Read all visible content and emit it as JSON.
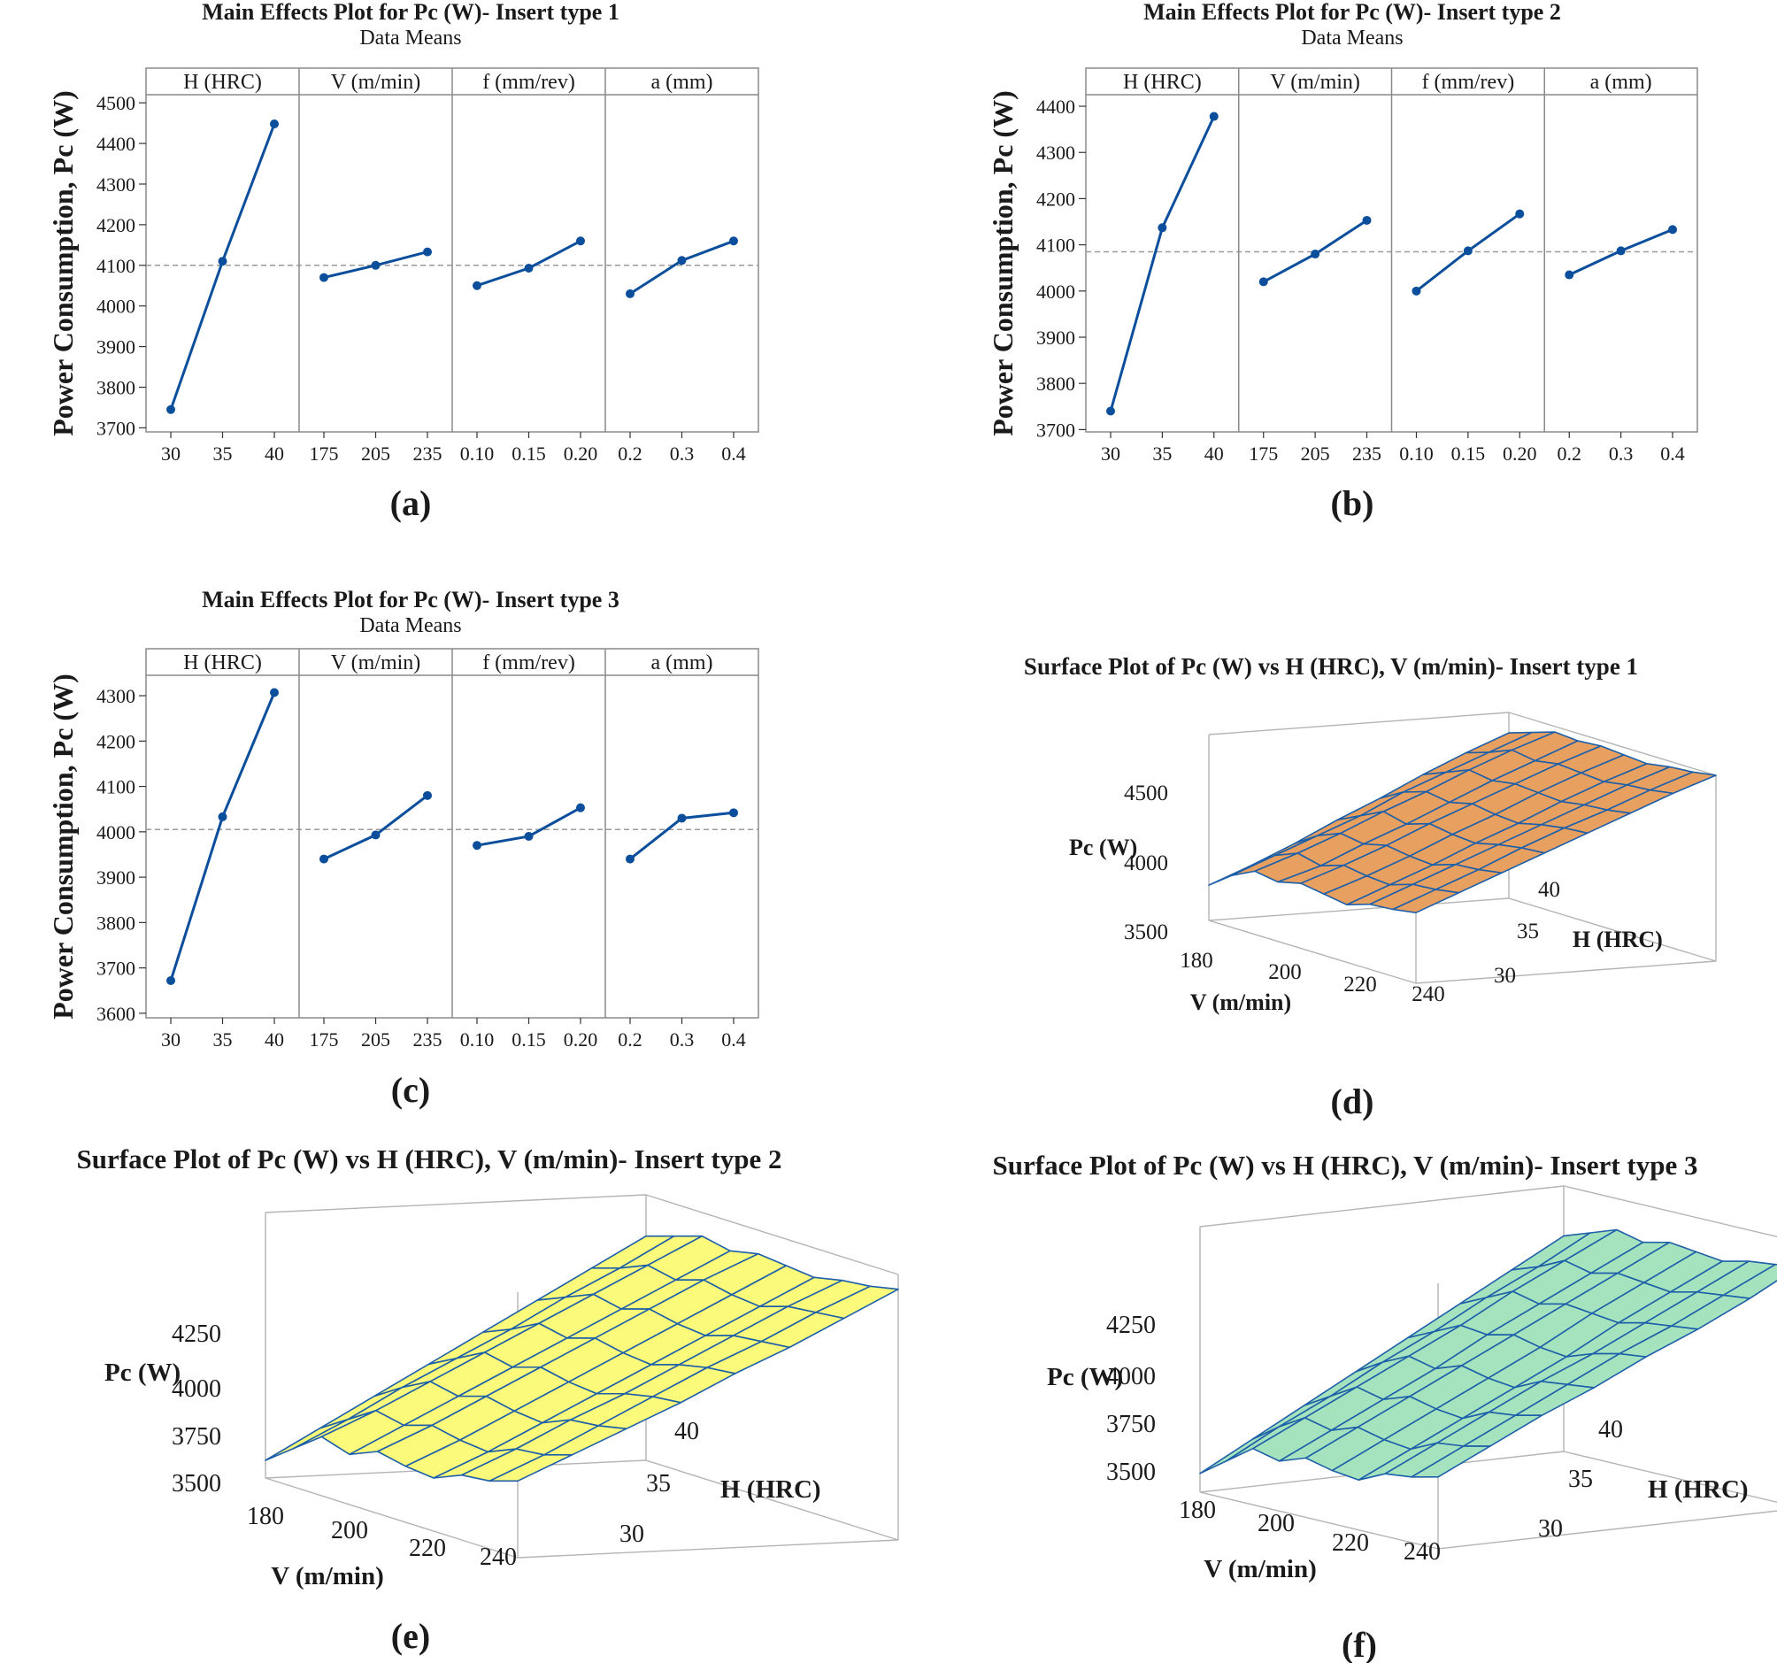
{
  "chart_data": [
    {
      "id": "a",
      "type": "line",
      "title": "Main Effects Plot for Pc (W)- Insert type 1",
      "subtitle": "Data Means",
      "ylabel": "Power Consumption, Pc (W)",
      "panel_label": "(a)",
      "ylim": [
        3690,
        4520
      ],
      "yticks": [
        3700,
        3800,
        3900,
        4000,
        4100,
        4200,
        4300,
        4400,
        4500
      ],
      "mean": 4100,
      "panels": [
        {
          "name": "H (HRC)",
          "categories": [
            "30",
            "35",
            "40"
          ],
          "values": [
            3745,
            4110,
            4448
          ]
        },
        {
          "name": "V (m/min)",
          "categories": [
            "175",
            "205",
            "235"
          ],
          "values": [
            4070,
            4100,
            4133
          ]
        },
        {
          "name": "f (mm/rev)",
          "categories": [
            "0.10",
            "0.15",
            "0.20"
          ],
          "values": [
            4050,
            4093,
            4160
          ]
        },
        {
          "name": "a (mm)",
          "categories": [
            "0.2",
            "0.3",
            "0.4"
          ],
          "values": [
            4030,
            4112,
            4160
          ]
        }
      ]
    },
    {
      "id": "b",
      "type": "line",
      "title": "Main Effects Plot for Pc (W)- Insert type 2",
      "subtitle": "Data Means",
      "ylabel": "Power Consumption, Pc (W)",
      "panel_label": "(b)",
      "ylim": [
        3695,
        4425
      ],
      "yticks": [
        3700,
        3800,
        3900,
        4000,
        4100,
        4200,
        4300,
        4400
      ],
      "mean": 4085,
      "panels": [
        {
          "name": "H (HRC)",
          "categories": [
            "30",
            "35",
            "40"
          ],
          "values": [
            3740,
            4137,
            4378
          ]
        },
        {
          "name": "V (m/min)",
          "categories": [
            "175",
            "205",
            "235"
          ],
          "values": [
            4020,
            4080,
            4153
          ]
        },
        {
          "name": "f (mm/rev)",
          "categories": [
            "0.10",
            "0.15",
            "0.20"
          ],
          "values": [
            4000,
            4087,
            4167
          ]
        },
        {
          "name": "a (mm)",
          "categories": [
            "0.2",
            "0.3",
            "0.4"
          ],
          "values": [
            4035,
            4087,
            4133
          ]
        }
      ]
    },
    {
      "id": "c",
      "type": "line",
      "title": "Main Effects Plot for Pc (W)- Insert type 3",
      "subtitle": "Data Means",
      "ylabel": "Power Consumption, Pc (W)",
      "panel_label": "(c)",
      "ylim": [
        3590,
        4345
      ],
      "yticks": [
        3600,
        3700,
        3800,
        3900,
        4000,
        4100,
        4200,
        4300
      ],
      "mean": 4005,
      "panels": [
        {
          "name": "H (HRC)",
          "categories": [
            "30",
            "35",
            "40"
          ],
          "values": [
            3672,
            4033,
            4307
          ]
        },
        {
          "name": "V (m/min)",
          "categories": [
            "175",
            "205",
            "235"
          ],
          "values": [
            3940,
            3993,
            4080
          ]
        },
        {
          "name": "f (mm/rev)",
          "categories": [
            "0.10",
            "0.15",
            "0.20"
          ],
          "values": [
            3970,
            3990,
            4053
          ]
        },
        {
          "name": "a (mm)",
          "categories": [
            "0.2",
            "0.3",
            "0.4"
          ],
          "values": [
            3940,
            4030,
            4042
          ]
        }
      ]
    },
    {
      "id": "d",
      "type": "surface",
      "title": "Surface Plot of Pc (W) vs H (HRC), V (m/min)- Insert type 1",
      "panel_label": "(d)",
      "zlabel": "Pc (W)",
      "xlabel": "V (m/min)",
      "ylabel": "H (HRC)",
      "zticks": [
        "4500",
        "4000",
        "3500"
      ],
      "xticks": [
        "180",
        "200",
        "220",
        "240"
      ],
      "yticks": [
        "40",
        "35",
        "30"
      ],
      "fill": "#e8a061",
      "zrange": [
        3500,
        4500
      ],
      "grid": [
        [
          3690,
          3780,
          3840,
          3820,
          3850,
          3830,
          3810,
          3850,
          3860,
          3880
        ],
        [
          3780,
          3870,
          3920,
          3890,
          3930,
          3910,
          3900,
          3940,
          3950,
          3970
        ],
        [
          3880,
          3960,
          4010,
          3990,
          4020,
          4000,
          3990,
          4030,
          4040,
          4060
        ],
        [
          3990,
          4050,
          4110,
          4080,
          4120,
          4100,
          4090,
          4120,
          4140,
          4150
        ],
        [
          4090,
          4160,
          4200,
          4180,
          4210,
          4190,
          4180,
          4210,
          4230,
          4240
        ],
        [
          4200,
          4250,
          4300,
          4280,
          4300,
          4290,
          4280,
          4300,
          4310,
          4330
        ],
        [
          4300,
          4340,
          4390,
          4370,
          4390,
          4380,
          4370,
          4390,
          4400,
          4420
        ],
        [
          4390,
          4430,
          4470,
          4460,
          4470,
          4460,
          4450,
          4470,
          4480,
          4500
        ]
      ]
    },
    {
      "id": "e",
      "type": "surface",
      "title": "Surface Plot of Pc (W) vs H (HRC), V (m/min)- Insert type 2",
      "panel_label": "(e)",
      "zlabel": "Pc (W)",
      "xlabel": "V (m/min)",
      "ylabel": "H (HRC)",
      "zticks": [
        "4250",
        "4000",
        "3750",
        "3500"
      ],
      "xticks": [
        "180",
        "200",
        "220",
        "240"
      ],
      "yticks": [
        "40",
        "35",
        "30"
      ],
      "fill": "#fbfa7a",
      "zrange": [
        3500,
        4400
      ],
      "grid": [
        [
          3560,
          3630,
          3700,
          3670,
          3710,
          3690,
          3680,
          3720,
          3730,
          3760
        ],
        [
          3660,
          3720,
          3780,
          3760,
          3790,
          3770,
          3760,
          3800,
          3810,
          3840
        ],
        [
          3760,
          3820,
          3870,
          3850,
          3880,
          3860,
          3850,
          3890,
          3900,
          3920
        ],
        [
          3860,
          3910,
          3960,
          3940,
          3970,
          3950,
          3940,
          3970,
          3990,
          4000
        ],
        [
          3960,
          4000,
          4050,
          4030,
          4060,
          4040,
          4030,
          4060,
          4080,
          4090
        ],
        [
          4060,
          4100,
          4140,
          4120,
          4150,
          4130,
          4120,
          4150,
          4160,
          4170
        ],
        [
          4160,
          4190,
          4230,
          4210,
          4240,
          4220,
          4210,
          4240,
          4250,
          4260
        ],
        [
          4260,
          4290,
          4320,
          4300,
          4320,
          4310,
          4300,
          4320,
          4330,
          4350
        ]
      ]
    },
    {
      "id": "f",
      "type": "surface",
      "title": "Surface Plot of Pc (W) vs H (HRC), V (m/min)- Insert type 3",
      "panel_label": "(f)",
      "zlabel": "Pc (W)",
      "xlabel": "V (m/min)",
      "ylabel": "H (HRC)",
      "zticks": [
        "4250",
        "4000",
        "3750",
        "3500"
      ],
      "xticks": [
        "180",
        "200",
        "220",
        "240"
      ],
      "yticks": [
        "40",
        "35",
        "30"
      ],
      "fill": "#a5e3bf",
      "zrange": [
        3500,
        4350
      ],
      "grid": [
        [
          3560,
          3620,
          3680,
          3660,
          3690,
          3670,
          3660,
          3700,
          3710,
          3730
        ],
        [
          3650,
          3710,
          3760,
          3740,
          3770,
          3750,
          3740,
          3780,
          3790,
          3810
        ],
        [
          3740,
          3790,
          3840,
          3820,
          3850,
          3830,
          3820,
          3860,
          3870,
          3890
        ],
        [
          3830,
          3880,
          3920,
          3900,
          3930,
          3910,
          3900,
          3940,
          3950,
          3960
        ],
        [
          3920,
          3960,
          4000,
          3990,
          4010,
          3990,
          3980,
          4010,
          4030,
          4040
        ],
        [
          4010,
          4050,
          4090,
          4070,
          4090,
          4080,
          4070,
          4090,
          4100,
          4110
        ],
        [
          4100,
          4130,
          4170,
          4150,
          4170,
          4160,
          4150,
          4170,
          4180,
          4190
        ],
        [
          4190,
          4220,
          4250,
          4230,
          4250,
          4240,
          4230,
          4250,
          4260,
          4280
        ]
      ]
    }
  ]
}
